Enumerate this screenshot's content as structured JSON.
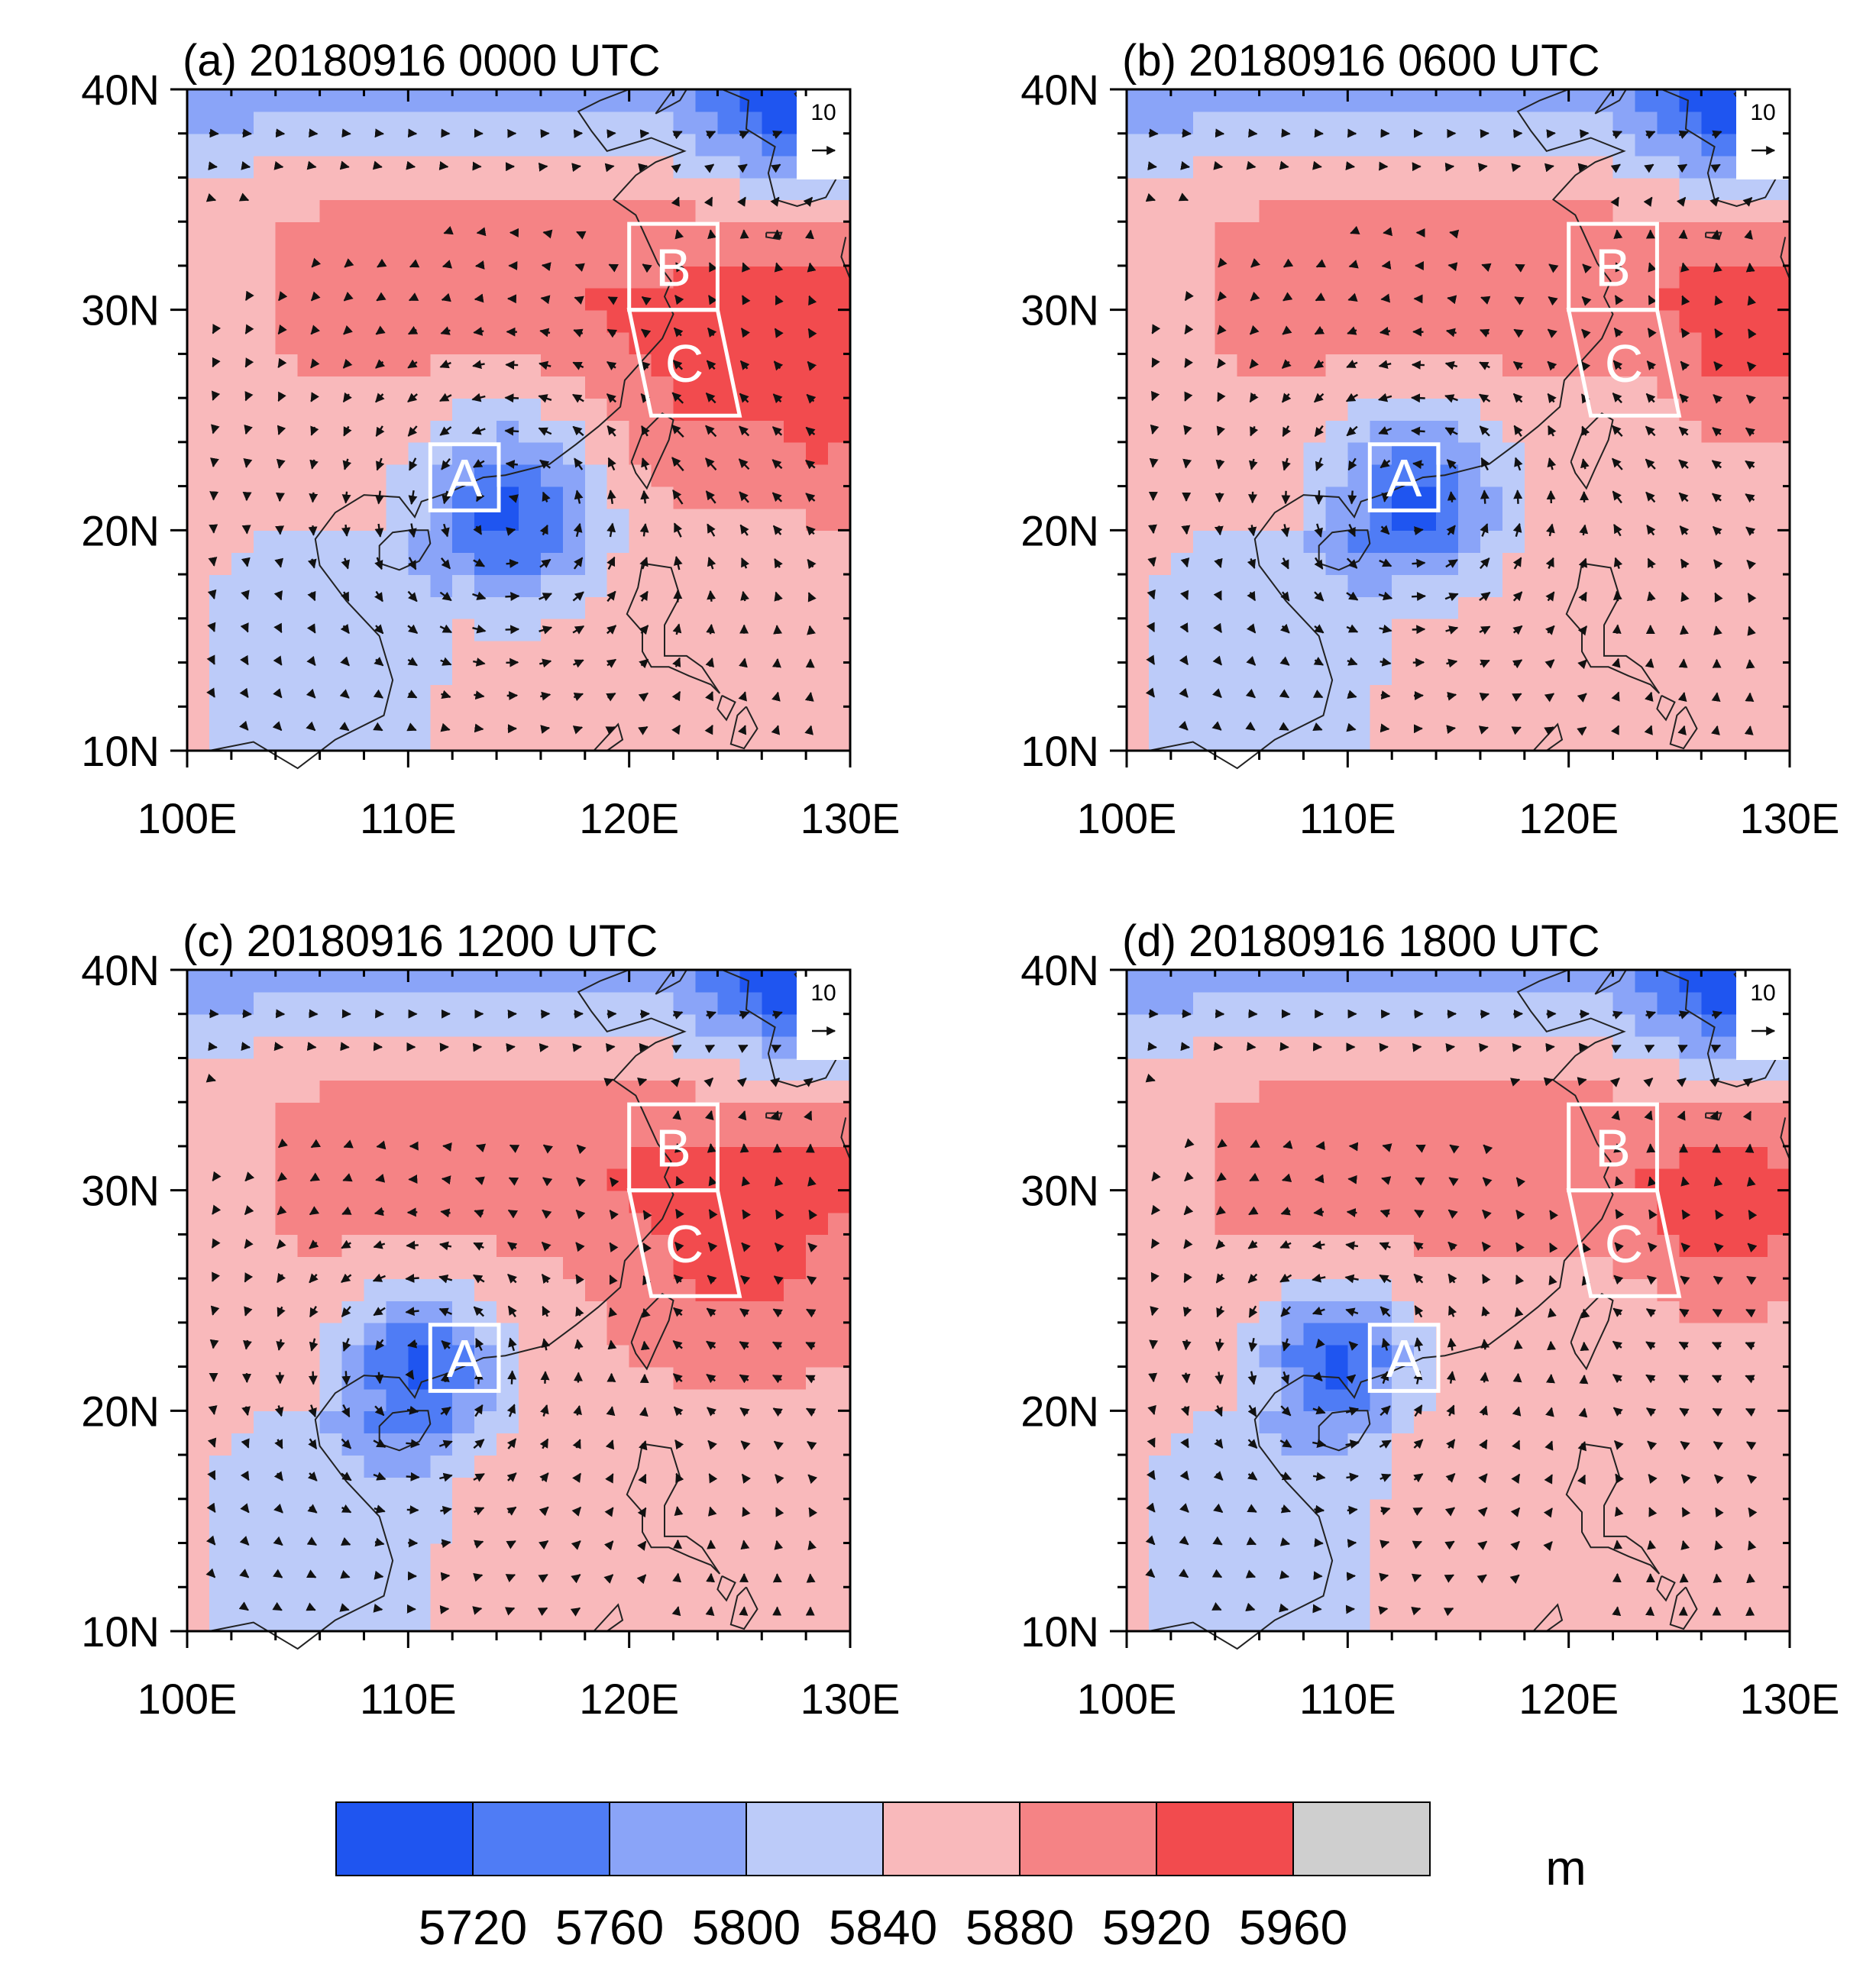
{
  "colors": {
    "levels": [
      "#1f55f0",
      "#4f7cf5",
      "#8aa4f8",
      "#bccbf9",
      "#f9b9bb",
      "#f58385",
      "#f24b4e",
      "#cfcfcf"
    ],
    "coast": "#222222",
    "arrow": "#111111",
    "box": "#ffffff"
  },
  "panels": [
    {
      "title": "(a) 20180916 0000 UTC",
      "center": [
        114.5,
        20.8
      ],
      "radius": 4.2,
      "hot_core": [
        [
          124.0,
          26.0,
          5.5,
          4.0
        ],
        [
          129.0,
          26.0,
          1.5,
          4.0
        ]
      ]
    },
    {
      "title": "(b) 20180916 0600 UTC",
      "center": [
        113.0,
        21.3
      ],
      "radius": 4.0,
      "hot_core": [
        [
          128.0,
          28.5,
          2.5,
          3.5
        ]
      ]
    },
    {
      "title": "(c) 20180916 1200 UTC",
      "center": [
        110.5,
        21.7
      ],
      "radius": 3.6,
      "hot_core": [
        [
          125.0,
          26.5,
          5.0,
          4.5
        ]
      ]
    },
    {
      "title": "(d) 20180916 1800 UTC",
      "center": [
        109.5,
        22.3
      ],
      "radius": 3.4,
      "hot_core": [
        [
          127.0,
          28.0,
          3.0,
          3.0
        ]
      ]
    }
  ],
  "axes": {
    "x_ticks": [
      "100E",
      "110E",
      "120E",
      "130E"
    ],
    "y_ticks": [
      "40N",
      "30N",
      "20N",
      "10N"
    ],
    "x_values": [
      100,
      110,
      120,
      130
    ],
    "y_values": [
      40,
      30,
      20,
      10
    ],
    "lon_range": [
      100,
      130
    ],
    "lat_range": [
      10,
      40
    ]
  },
  "boxes": {
    "A": {
      "label": "A",
      "corners": [
        [
          111.0,
          23.9
        ],
        [
          114.1,
          23.9
        ],
        [
          114.1,
          20.9
        ],
        [
          111.0,
          20.9
        ]
      ]
    },
    "B": {
      "label": "B",
      "corners": [
        [
          120.0,
          33.9
        ],
        [
          124.0,
          33.9
        ],
        [
          124.0,
          30.0
        ],
        [
          120.0,
          30.0
        ]
      ]
    },
    "C": {
      "label": "C",
      "corners": [
        [
          120.0,
          30.0
        ],
        [
          124.0,
          30.0
        ],
        [
          125.0,
          25.2
        ],
        [
          121.0,
          25.2
        ]
      ]
    }
  },
  "reference_vector": {
    "value": "10"
  },
  "colorbar": {
    "levels": [
      "5720",
      "5760",
      "5800",
      "5840",
      "5880",
      "5920",
      "5960"
    ],
    "unit": "m"
  }
}
